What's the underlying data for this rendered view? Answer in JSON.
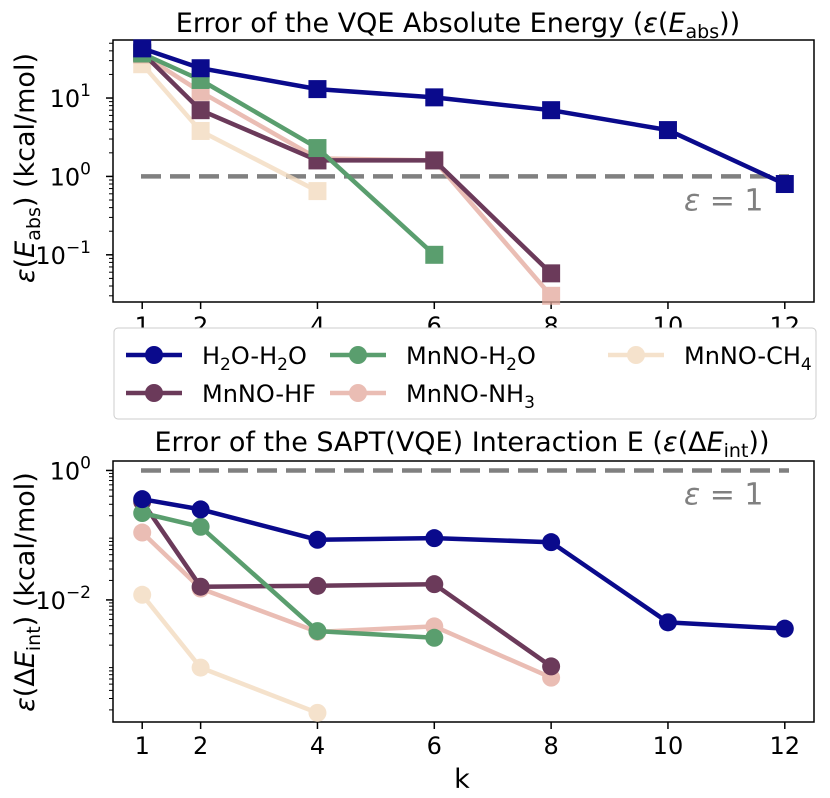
{
  "colors": {
    "H2O-H2O": "#0a0a8c",
    "MnNO-HF": "#6b3a5a",
    "MnNO-H2O": "#5a9e6e",
    "MnNO-NH3": "#e3a89c",
    "MnNO-CH4": "#f3dcc0",
    "reference": "#808080"
  },
  "chart_data": [
    {
      "type": "line",
      "title": "Error of the VQE Absolute Energy (ε(E_abs))",
      "ylabel": "ε(E_abs) (kcal/mol)",
      "xlabel": "",
      "yscale": "log",
      "xlim": [
        0.5,
        12.5
      ],
      "ylim": [
        0.025,
        55
      ],
      "xticks": [
        1,
        2,
        4,
        6,
        8,
        10,
        12
      ],
      "yticks": [
        {
          "value": 0.1,
          "label": "10^−1"
        },
        {
          "value": 1,
          "label": "10^0"
        },
        {
          "value": 10,
          "label": "10^1"
        }
      ],
      "marker": "square",
      "reference": {
        "value": 1,
        "label": "ε = 1"
      },
      "series": [
        {
          "name": "H2O-H2O",
          "x": [
            1,
            2,
            4,
            6,
            8,
            10,
            12
          ],
          "y": [
            43,
            24,
            13,
            10.2,
            7.0,
            3.9,
            0.8
          ]
        },
        {
          "name": "MnNO-HF",
          "x": [
            1,
            2,
            4,
            6,
            8
          ],
          "y": [
            38,
            7.0,
            1.6,
            1.6,
            0.058
          ]
        },
        {
          "name": "MnNO-H2O",
          "x": [
            1,
            2,
            4,
            6
          ],
          "y": [
            37,
            17,
            2.3,
            0.1
          ]
        },
        {
          "name": "MnNO-NH3",
          "x": [
            1,
            2,
            4,
            6,
            8
          ],
          "y": [
            36,
            12,
            1.7,
            1.6,
            0.03
          ]
        },
        {
          "name": "MnNO-CH4",
          "x": [
            1,
            2,
            4
          ],
          "y": [
            27,
            3.8,
            0.65
          ]
        }
      ]
    },
    {
      "type": "line",
      "title": "Error of the SAPT(VQE) Interaction E (ε(ΔE_int))",
      "ylabel": "ε(ΔE_int) (kcal/mol)",
      "xlabel": "k",
      "yscale": "log",
      "xlim": [
        0.5,
        12.5
      ],
      "ylim": [
        0.00013,
        1.4
      ],
      "xticks": [
        1,
        2,
        4,
        6,
        8,
        10,
        12
      ],
      "yticks": [
        {
          "value": 0.01,
          "label": "10^−2"
        },
        {
          "value": 1,
          "label": "10^0"
        }
      ],
      "marker": "circle",
      "reference": {
        "value": 1,
        "label": "ε = 1"
      },
      "series": [
        {
          "name": "H2O-H2O",
          "x": [
            1,
            2,
            4,
            6,
            8,
            10,
            12
          ],
          "y": [
            0.36,
            0.25,
            0.085,
            0.09,
            0.078,
            0.0045,
            0.0036
          ]
        },
        {
          "name": "MnNO-HF",
          "x": [
            1,
            2,
            4,
            6,
            8
          ],
          "y": [
            0.33,
            0.016,
            0.0165,
            0.0175,
            0.00094
          ]
        },
        {
          "name": "MnNO-H2O",
          "x": [
            1,
            2,
            4,
            6
          ],
          "y": [
            0.22,
            0.135,
            0.0033,
            0.0026
          ]
        },
        {
          "name": "MnNO-NH3",
          "x": [
            1,
            2,
            4,
            6,
            8
          ],
          "y": [
            0.11,
            0.015,
            0.0032,
            0.0039,
            0.00063
          ]
        },
        {
          "name": "MnNO-CH4",
          "x": [
            1,
            2,
            4
          ],
          "y": [
            0.012,
            0.0009,
            0.00018
          ]
        }
      ]
    }
  ],
  "legend": [
    {
      "key": "H2O-H2O",
      "base": "H",
      "sub1": "2",
      "mid": "O-H",
      "sub2": "2",
      "end": "O"
    },
    {
      "key": "MnNO-H2O",
      "base": "MnNO-H",
      "sub1": "2",
      "mid": "O",
      "sub2": "",
      "end": ""
    },
    {
      "key": "MnNO-CH4",
      "base": "MnNO-CH",
      "sub1": "4",
      "mid": "",
      "sub2": "",
      "end": ""
    },
    {
      "key": "MnNO-HF",
      "base": "MnNO-HF",
      "sub1": "",
      "mid": "",
      "sub2": "",
      "end": ""
    },
    {
      "key": "MnNO-NH3",
      "base": "MnNO-NH",
      "sub1": "3",
      "mid": "",
      "sub2": "",
      "end": ""
    }
  ],
  "text": {
    "title1_pre": "Error of the VQE Absolute Energy (",
    "title1_eps": "ε",
    "title1_paren": "(",
    "title1_E": "E",
    "title1_sub": "abs",
    "title1_post": "))",
    "title2_pre": "Error of the SAPT(VQE) Interaction E (",
    "title2_eps": "ε",
    "title2_mid": "(Δ",
    "title2_E": "E",
    "title2_sub": "int",
    "title2_post": "))",
    "ylabel1_eps": "ε",
    "ylabel1_paren": "(",
    "ylabel1_E": "E",
    "ylabel1_sub": "abs",
    "ylabel1_post": ") (kcal/mol)",
    "ylabel2_eps": "ε",
    "ylabel2_mid": "(Δ",
    "ylabel2_E": "E",
    "ylabel2_sub": "int",
    "ylabel2_post": ") (kcal/mol)",
    "xlabel": "k",
    "ref_eps": "ε",
    "ref_eq": " = 1",
    "ytick_base": "10",
    "ytick_m1": "−1",
    "ytick_0": "0",
    "ytick_1": "1",
    "ytick_m2": "−2"
  }
}
